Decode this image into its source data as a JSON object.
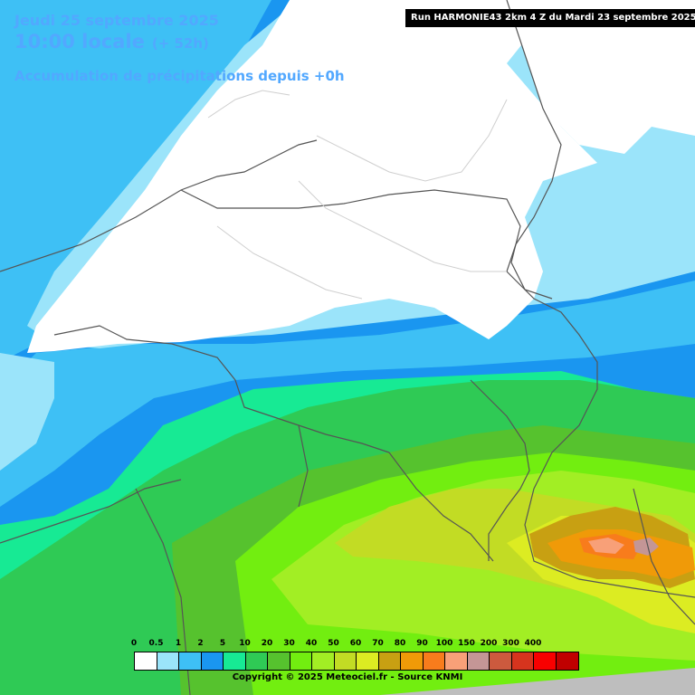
{
  "header": {
    "date": "Jeudi 25 septembre 2025",
    "time": "10:00 locale",
    "lead": "(+ 52h)",
    "parameter": "Accumulation de précipitations depuis +0h"
  },
  "run_info": "Run HARMONIE43 2km 4 Z du Mardi 23 septembre 2025",
  "legend": {
    "labels": [
      "0",
      "0.5",
      "1",
      "2",
      "5",
      "10",
      "20",
      "30",
      "40",
      "50",
      "60",
      "70",
      "80",
      "90",
      "100",
      "150",
      "200",
      "300",
      "400"
    ],
    "colors": [
      "#ffffff",
      "#9be4fa",
      "#3ec0f5",
      "#1a96f0",
      "#17ea94",
      "#2fca55",
      "#56c22e",
      "#72ee10",
      "#a2ee24",
      "#c2dc24",
      "#dcec22",
      "#c8a012",
      "#f09a08",
      "#f87c1c",
      "#f8a078",
      "#c49696",
      "#cc5a3e",
      "#d6341e",
      "#f80000",
      "#c00000"
    ]
  },
  "copyright": "Copyright © 2025 Meteociel.fr - Source KNMI",
  "map": {
    "colors": {
      "white": "#ffffff",
      "light_blue": "#9be4fa",
      "sky_blue": "#3ec0f5",
      "blue": "#1a96f0",
      "teal": "#17ea94",
      "green": "#2fca55",
      "green2": "#56c22e",
      "lime": "#72ee10",
      "yellow_green": "#a2ee24",
      "olive": "#c2dc24",
      "yellow": "#dcec22",
      "brownish": "#c8a012",
      "orange": "#f09a08",
      "orange2": "#f87c1c",
      "salmon": "#f8a078",
      "mauve": "#c49696",
      "out_of_domain": "#bebebe",
      "borders": "#555555"
    }
  }
}
